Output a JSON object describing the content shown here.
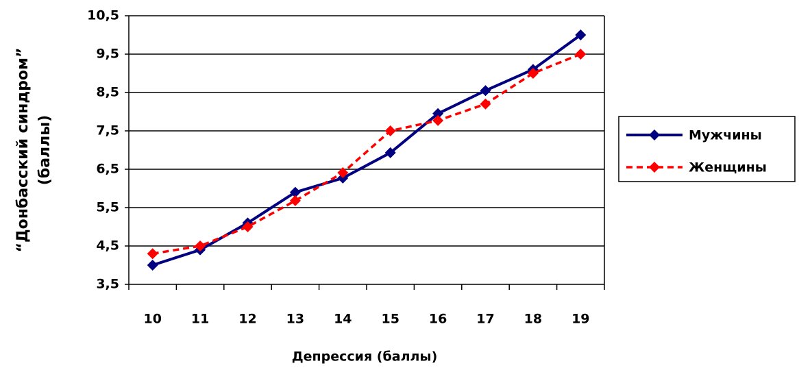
{
  "chart_data": {
    "type": "line",
    "x_label": "Депрессия (баллы)",
    "y_label": [
      "“Донбасский синдром”",
      "(баллы)"
    ],
    "categories": [
      "10",
      "11",
      "12",
      "13",
      "14",
      "15",
      "16",
      "17",
      "18",
      "19"
    ],
    "series": [
      {
        "name": "Мужчины",
        "color": "#000080",
        "dashed": false,
        "values": [
          4.0,
          4.4,
          5.1,
          5.9,
          6.27,
          6.93,
          7.95,
          8.55,
          9.1,
          10.0
        ]
      },
      {
        "name": "Женщины",
        "color": "#ff0000",
        "dashed": true,
        "values": [
          4.3,
          4.5,
          5.0,
          5.68,
          6.41,
          7.5,
          7.77,
          8.2,
          9.0,
          9.5
        ]
      }
    ],
    "ylim": [
      3.5,
      10.5
    ],
    "yticks": [
      {
        "value": 3.5,
        "label": "3,5"
      },
      {
        "value": 4.5,
        "label": "4,5"
      },
      {
        "value": 5.5,
        "label": "5,5"
      },
      {
        "value": 6.5,
        "label": "6,5"
      },
      {
        "value": 7.5,
        "label": "7,5"
      },
      {
        "value": 8.5,
        "label": "8,5"
      },
      {
        "value": 9.5,
        "label": "9,5"
      },
      {
        "value": 10.5,
        "label": "10,5"
      }
    ],
    "grid": true
  }
}
